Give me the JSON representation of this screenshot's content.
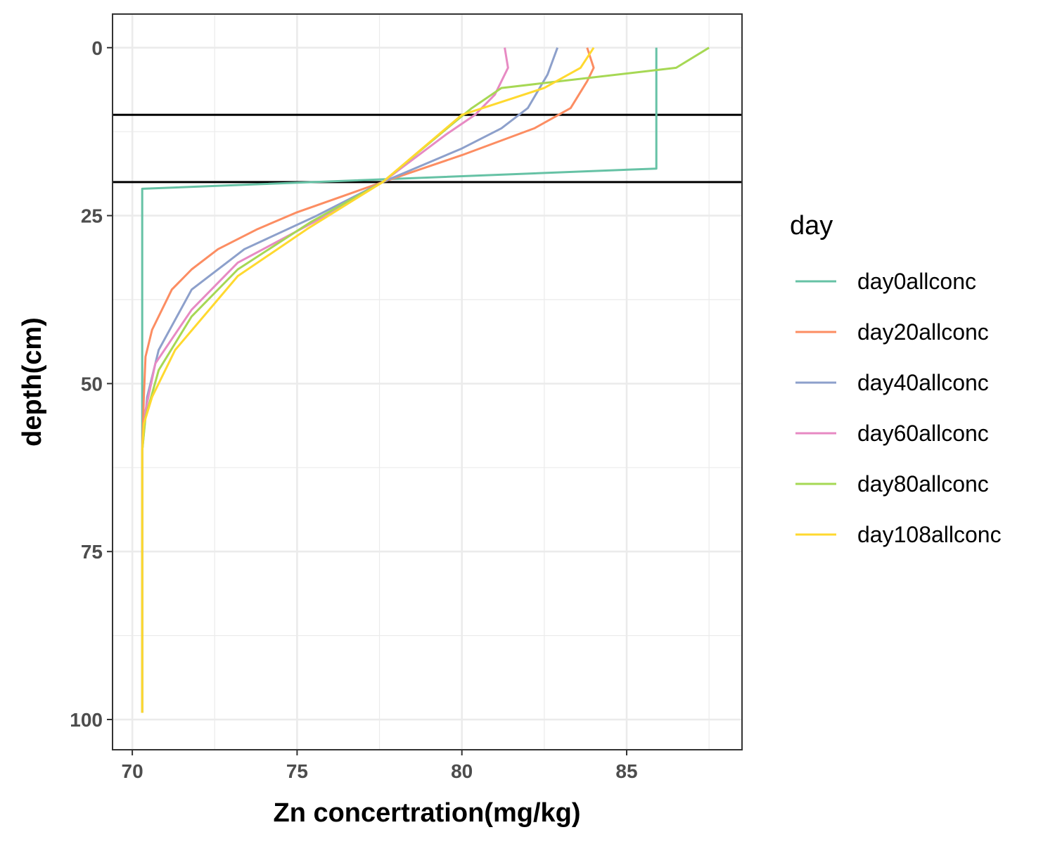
{
  "chart_data": {
    "type": "line",
    "xlabel": "Zn concertration(mg/kg)",
    "ylabel": "depth(cm)",
    "xlim": [
      69.4,
      88.5
    ],
    "ylim": [
      -5,
      104.5
    ],
    "y_reversed": true,
    "x_ticks": [
      70,
      75,
      80,
      85
    ],
    "x_minor_ticks": [
      72.5,
      77.5,
      82.5,
      87.5
    ],
    "y_ticks": [
      0,
      25,
      50,
      75,
      100
    ],
    "y_minor_ticks": [
      12.5,
      37.5,
      62.5,
      87.5
    ],
    "grid": true,
    "reference_lines": [
      {
        "orientation": "horizontal",
        "y": 10,
        "color": "#000000"
      },
      {
        "orientation": "horizontal",
        "y": 20,
        "color": "#000000"
      }
    ],
    "legend": {
      "title": "day",
      "position": "right"
    },
    "series": [
      {
        "name": "day0allconc",
        "color": "#66C2A5",
        "x": [
          85.9,
          85.9,
          70.3,
          70.3
        ],
        "y": [
          0,
          18,
          21,
          99
        ]
      },
      {
        "name": "day20allconc",
        "color": "#FC8D62",
        "x": [
          83.8,
          84.0,
          83.8,
          83.3,
          82.2,
          80.0,
          77.6,
          75.0,
          73.8,
          72.6,
          71.8,
          71.2,
          70.6,
          70.4,
          70.35,
          70.3,
          70.3
        ],
        "y": [
          0,
          3,
          5,
          9,
          12,
          16,
          20,
          24.5,
          27,
          30,
          33,
          36,
          42,
          46,
          52,
          60,
          99
        ]
      },
      {
        "name": "day40allconc",
        "color": "#8DA0CB",
        "x": [
          82.9,
          82.6,
          82.0,
          81.2,
          80.0,
          77.6,
          75.6,
          73.4,
          71.8,
          70.8,
          70.45,
          70.3,
          70.3
        ],
        "y": [
          0,
          4,
          9,
          12,
          15,
          20,
          25,
          30,
          36,
          45,
          52,
          60,
          99
        ]
      },
      {
        "name": "day60allconc",
        "color": "#E78AC3",
        "x": [
          81.3,
          81.4,
          81.0,
          80.4,
          79.5,
          77.6,
          75.5,
          73.2,
          71.8,
          70.7,
          70.4,
          70.3,
          70.3
        ],
        "y": [
          0,
          3,
          7,
          10,
          13,
          20,
          26,
          32,
          39,
          47,
          54,
          60,
          99
        ]
      },
      {
        "name": "day80allconc",
        "color": "#A6D854",
        "x": [
          87.5,
          86.5,
          81.2,
          80.3,
          79.8,
          77.6,
          75.4,
          73.2,
          71.8,
          70.8,
          70.4,
          70.3,
          70.3
        ],
        "y": [
          0,
          3,
          6,
          9,
          11,
          20,
          26,
          33,
          40,
          48,
          55,
          60,
          99
        ]
      },
      {
        "name": "day108allconc",
        "color": "#FFD92F",
        "x": [
          84.0,
          83.6,
          82.5,
          80.0,
          77.6,
          75.3,
          73.2,
          71.3,
          70.6,
          70.35,
          70.3,
          70.3
        ],
        "y": [
          0,
          3,
          6,
          10,
          20,
          27,
          34,
          45,
          52,
          56,
          60,
          99
        ]
      }
    ]
  }
}
